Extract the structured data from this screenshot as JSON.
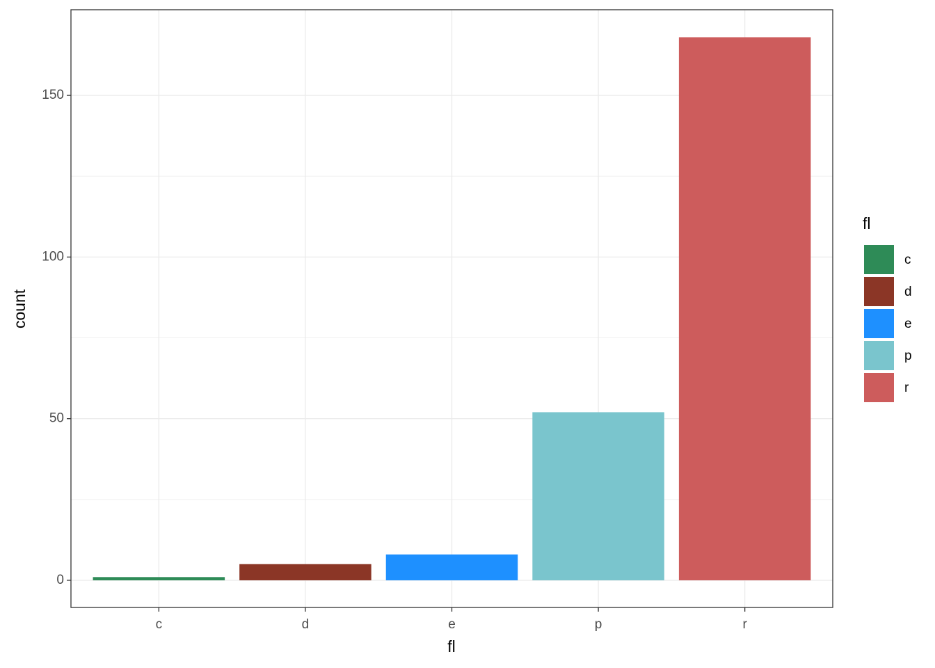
{
  "chart_data": {
    "type": "bar",
    "x_label": "fl",
    "y_label": "count",
    "legend_title": "fl",
    "categories": [
      "c",
      "d",
      "e",
      "p",
      "r"
    ],
    "values": [
      1,
      5,
      8,
      52,
      168
    ],
    "colors": [
      "#2e8b57",
      "#8b3626",
      "#1e90ff",
      "#7ac5cd",
      "#cd5c5c"
    ],
    "ylim": [
      -8.4,
      176.5
    ],
    "yticks": [
      0,
      50,
      100,
      150
    ],
    "grid": true,
    "legend": "right"
  }
}
